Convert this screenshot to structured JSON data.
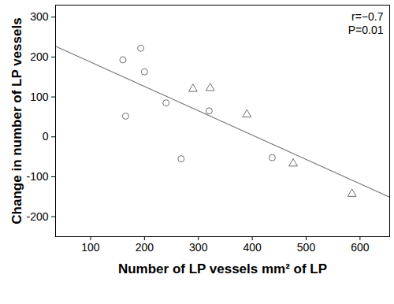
{
  "chart_data": {
    "type": "scatter",
    "x_label": "Number of LP vessels mm² of LP",
    "y_label": "Change in number of LP vessels",
    "annotations": [
      "r=−0.7",
      "P=0.01"
    ],
    "xlim": [
      35,
      655
    ],
    "ylim": [
      -250,
      330
    ],
    "xticks": [
      100,
      200,
      300,
      400,
      500,
      600
    ],
    "yticks": [
      -200,
      -100,
      0,
      100,
      200,
      300
    ],
    "grid": false,
    "series": [
      {
        "marker": "circle",
        "color": "#707070",
        "x": [
          160,
          165,
          193,
          200,
          240,
          268,
          320,
          437
        ],
        "values": [
          193,
          52,
          222,
          163,
          85,
          -55,
          65,
          -52
        ]
      },
      {
        "marker": "triangle",
        "color": "#707070",
        "x": [
          290,
          322,
          390,
          476,
          585
        ],
        "values": [
          120,
          122,
          56,
          -67,
          -143
        ]
      },
      {
        "type": "line",
        "color": "#777777",
        "x": [
          35,
          655
        ],
        "values": [
          227,
          -151
        ]
      }
    ]
  }
}
